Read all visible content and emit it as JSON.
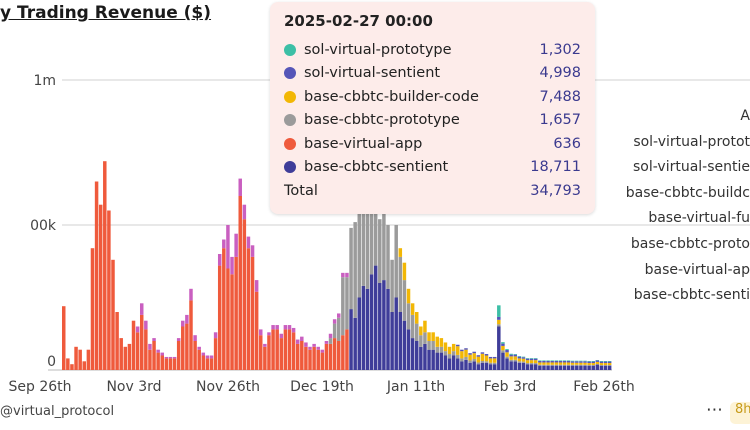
{
  "title": "y Trading Revenue ($)",
  "handle": "@virtual_protocol",
  "more_icon": "⋯",
  "badge": "8h",
  "legend_items": [
    "A",
    "sol-virtual-protot",
    "sol-virtual-sentie",
    "base-cbbtc-buildc",
    "base-virtual-fu",
    "base-cbbtc-proto",
    "base-virtual-ap",
    "base-cbbtc-senti"
  ],
  "tooltip": {
    "time": "2025-02-27 00:00",
    "rows": [
      {
        "name": "sol-virtual-prototype",
        "value": "1,302",
        "color": "#3cbfa6"
      },
      {
        "name": "sol-virtual-sentient",
        "value": "4,998",
        "color": "#5555b8"
      },
      {
        "name": "base-cbbtc-builder-code",
        "value": "7,488",
        "color": "#f2b705"
      },
      {
        "name": "base-cbbtc-prototype",
        "value": "1,657",
        "color": "#9b9b9b"
      },
      {
        "name": "base-virtual-app",
        "value": "636",
        "color": "#ef5a3c"
      },
      {
        "name": "base-cbbtc-sentient",
        "value": "18,711",
        "color": "#3f3d99"
      }
    ],
    "total_label": "Total",
    "total_value": "34,793"
  },
  "chart_data": {
    "type": "bar",
    "stacked": true,
    "title": "y Trading Revenue ($)",
    "y_tick_labels": [
      "0",
      "00k",
      "1m"
    ],
    "ylim": [
      0,
      1000000
    ],
    "x_tick_labels": [
      "Sep 26th",
      "Nov 3rd",
      "Nov 26th",
      "Dec 19th",
      "Jan 11th",
      "Feb 3rd",
      "Feb 26th"
    ],
    "grid": "horizontal",
    "legend_position": "right",
    "series": [
      {
        "name": "base-virtual-app",
        "color": "#ef5a3c",
        "values": [
          220000,
          40000,
          20000,
          80000,
          70000,
          30000,
          70000,
          420000,
          650000,
          570000,
          720000,
          550000,
          380000,
          200000,
          110000,
          80000,
          90000,
          170000,
          130000,
          190000,
          140000,
          70000,
          100000,
          60000,
          50000,
          40000,
          40000,
          40000,
          100000,
          150000,
          160000,
          240000,
          100000,
          70000,
          50000,
          40000,
          40000,
          110000,
          360000,
          420000,
          350000,
          330000,
          390000,
          600000,
          520000,
          420000,
          390000,
          270000,
          120000,
          80000,
          120000,
          140000,
          140000,
          110000,
          140000,
          140000,
          130000,
          90000,
          100000,
          80000,
          70000,
          80000,
          70000,
          60000,
          90000,
          90000,
          110000,
          100000,
          120000,
          140000,
          0,
          0,
          0,
          0,
          0,
          0,
          0,
          0,
          0,
          0,
          0,
          0,
          0,
          0,
          0,
          0,
          0,
          0,
          0,
          0,
          0,
          0,
          0,
          0,
          0,
          0,
          0,
          0,
          0,
          0,
          0,
          0,
          0,
          0,
          0,
          0,
          0,
          0,
          0,
          0,
          0,
          0,
          0,
          0,
          0,
          0,
          0,
          0,
          0,
          0,
          0,
          0,
          0,
          0,
          0,
          0,
          0,
          0,
          0,
          0,
          0,
          0,
          0,
          0
        ]
      },
      {
        "name": "base-cbbtc-sentient",
        "color": "#3f3d99",
        "values": [
          0,
          0,
          0,
          0,
          0,
          0,
          0,
          0,
          0,
          0,
          0,
          0,
          0,
          0,
          0,
          0,
          0,
          0,
          0,
          0,
          0,
          0,
          0,
          0,
          0,
          0,
          0,
          0,
          0,
          0,
          0,
          0,
          0,
          0,
          0,
          0,
          0,
          0,
          0,
          0,
          0,
          0,
          0,
          0,
          0,
          0,
          0,
          0,
          0,
          0,
          0,
          0,
          0,
          0,
          0,
          0,
          0,
          0,
          0,
          0,
          0,
          0,
          0,
          0,
          0,
          0,
          0,
          0,
          0,
          0,
          210000,
          180000,
          250000,
          290000,
          280000,
          330000,
          360000,
          300000,
          310000,
          280000,
          200000,
          250000,
          200000,
          170000,
          140000,
          110000,
          100000,
          80000,
          90000,
          70000,
          70000,
          60000,
          60000,
          50000,
          40000,
          50000,
          40000,
          30000,
          35000,
          25000,
          30000,
          20000,
          25000,
          25000,
          20000,
          20000,
          150000,
          60000,
          40000,
          30000,
          30000,
          25000,
          25000,
          20000,
          20000,
          20000,
          15000,
          15000,
          15000,
          15000,
          15000,
          15000,
          15000,
          15000,
          15000,
          15000,
          15000,
          15000,
          15000,
          15000,
          18711,
          15000,
          15000,
          15000
        ]
      },
      {
        "name": "base-cbbtc-prototype",
        "color": "#9b9b9b",
        "values": [
          0,
          0,
          0,
          0,
          0,
          0,
          0,
          0,
          0,
          0,
          0,
          0,
          0,
          0,
          0,
          0,
          0,
          0,
          0,
          0,
          0,
          0,
          0,
          0,
          0,
          0,
          0,
          0,
          0,
          0,
          0,
          0,
          0,
          0,
          0,
          0,
          0,
          0,
          0,
          0,
          0,
          0,
          0,
          0,
          0,
          0,
          0,
          0,
          0,
          0,
          0,
          0,
          0,
          0,
          0,
          0,
          0,
          0,
          0,
          0,
          0,
          0,
          0,
          0,
          0,
          20000,
          50000,
          80000,
          200000,
          180000,
          280000,
          330000,
          350000,
          320000,
          280000,
          230000,
          200000,
          220000,
          250000,
          220000,
          180000,
          250000,
          190000,
          140000,
          90000,
          80000,
          60000,
          40000,
          40000,
          30000,
          30000,
          20000,
          20000,
          15000,
          15000,
          15000,
          12000,
          10000,
          10000,
          8000,
          8000,
          6000,
          6000,
          5000,
          5000,
          5000,
          8000,
          8000,
          6000,
          5000,
          5000,
          5000,
          4000,
          4000,
          4000,
          4000,
          3000,
          3000,
          3000,
          3000,
          3000,
          3000,
          3000,
          3000,
          3000,
          3000,
          3000,
          3000,
          2000,
          2000,
          1657,
          2000,
          2000,
          2000
        ]
      },
      {
        "name": "base-cbbtc-builder-code",
        "color": "#f2b705",
        "values": [
          0,
          0,
          0,
          0,
          0,
          0,
          0,
          0,
          0,
          0,
          0,
          0,
          0,
          0,
          0,
          0,
          0,
          0,
          0,
          0,
          0,
          0,
          0,
          0,
          0,
          0,
          0,
          0,
          0,
          0,
          0,
          0,
          0,
          0,
          0,
          0,
          0,
          0,
          0,
          0,
          0,
          0,
          0,
          0,
          0,
          0,
          0,
          0,
          0,
          0,
          0,
          0,
          0,
          0,
          0,
          0,
          0,
          0,
          0,
          0,
          0,
          0,
          0,
          0,
          0,
          0,
          0,
          0,
          0,
          0,
          0,
          0,
          0,
          0,
          0,
          0,
          0,
          0,
          0,
          0,
          0,
          0,
          30000,
          60000,
          50000,
          40000,
          40000,
          30000,
          40000,
          30000,
          30000,
          35000,
          30000,
          30000,
          25000,
          25000,
          30000,
          25000,
          25000,
          20000,
          20000,
          20000,
          25000,
          20000,
          15000,
          15000,
          15000,
          15000,
          15000,
          12000,
          12000,
          10000,
          10000,
          10000,
          10000,
          10000,
          8000,
          8000,
          8000,
          8000,
          8000,
          8000,
          8000,
          8000,
          7000,
          7000,
          7000,
          7000,
          7000,
          7000,
          7488,
          7000,
          7000,
          7000
        ]
      },
      {
        "name": "sol-virtual-sentient",
        "color": "#5555b8",
        "values": [
          0,
          0,
          0,
          0,
          0,
          0,
          0,
          0,
          0,
          0,
          0,
          0,
          0,
          0,
          0,
          0,
          0,
          0,
          0,
          0,
          0,
          0,
          0,
          0,
          0,
          0,
          0,
          0,
          0,
          0,
          0,
          0,
          0,
          0,
          0,
          0,
          0,
          0,
          0,
          0,
          0,
          0,
          0,
          0,
          0,
          0,
          0,
          0,
          0,
          0,
          0,
          0,
          0,
          0,
          0,
          0,
          0,
          0,
          0,
          0,
          0,
          0,
          0,
          0,
          0,
          0,
          0,
          0,
          0,
          0,
          0,
          0,
          0,
          0,
          0,
          0,
          0,
          0,
          0,
          0,
          0,
          0,
          0,
          0,
          0,
          0,
          0,
          0,
          0,
          0,
          0,
          0,
          0,
          0,
          0,
          0,
          5000,
          5000,
          5000,
          5000,
          5000,
          5000,
          5000,
          5000,
          5000,
          5000,
          10000,
          8000,
          8000,
          6000,
          6000,
          6000,
          5000,
          5000,
          5000,
          5000,
          5000,
          5000,
          5000,
          5000,
          5000,
          5000,
          5000,
          5000,
          5000,
          5000,
          5000,
          5000,
          5000,
          5000,
          4998,
          5000,
          5000,
          5000
        ]
      },
      {
        "name": "sol-virtual-prototype",
        "color": "#3cbfa6",
        "values": [
          0,
          0,
          0,
          0,
          0,
          0,
          0,
          0,
          0,
          0,
          0,
          0,
          0,
          0,
          0,
          0,
          0,
          0,
          0,
          0,
          0,
          0,
          0,
          0,
          0,
          0,
          0,
          0,
          0,
          0,
          0,
          0,
          0,
          0,
          0,
          0,
          0,
          0,
          0,
          0,
          0,
          0,
          0,
          0,
          0,
          0,
          0,
          0,
          0,
          0,
          0,
          0,
          0,
          0,
          0,
          0,
          0,
          0,
          0,
          0,
          0,
          0,
          0,
          0,
          0,
          0,
          0,
          0,
          0,
          0,
          0,
          0,
          0,
          0,
          0,
          0,
          0,
          0,
          0,
          0,
          0,
          0,
          0,
          0,
          0,
          0,
          0,
          0,
          0,
          0,
          0,
          0,
          0,
          0,
          0,
          0,
          0,
          0,
          0,
          0,
          0,
          0,
          0,
          0,
          0,
          0,
          40000,
          5000,
          3000,
          3000,
          2000,
          2000,
          2000,
          2000,
          2000,
          2000,
          2000,
          2000,
          2000,
          2000,
          2000,
          2000,
          2000,
          2000,
          2000,
          2000,
          2000,
          2000,
          2000,
          2000,
          1302,
          2000,
          2000,
          2000
        ]
      },
      {
        "name": "base-virtual-fu",
        "color": "#c95fc0",
        "values": [
          0,
          0,
          0,
          0,
          0,
          0,
          0,
          0,
          0,
          0,
          0,
          0,
          0,
          0,
          0,
          0,
          0,
          0,
          20000,
          40000,
          30000,
          20000,
          10000,
          10000,
          10000,
          5000,
          5000,
          5000,
          10000,
          20000,
          30000,
          40000,
          20000,
          10000,
          10000,
          10000,
          10000,
          20000,
          40000,
          30000,
          150000,
          60000,
          80000,
          60000,
          50000,
          40000,
          40000,
          40000,
          20000,
          10000,
          10000,
          15000,
          15000,
          15000,
          15000,
          15000,
          15000,
          15000,
          15000,
          15000,
          10000,
          10000,
          10000,
          10000,
          10000,
          15000,
          15000,
          15000,
          15000,
          15000,
          0,
          0,
          0,
          0,
          0,
          0,
          0,
          0,
          0,
          0,
          0,
          0,
          0,
          0,
          0,
          0,
          0,
          0,
          0,
          0,
          0,
          0,
          0,
          0,
          0,
          0,
          0,
          0,
          0,
          0,
          0,
          0,
          0,
          0,
          0,
          0,
          0,
          0,
          0,
          0,
          0,
          0,
          0,
          0,
          0,
          0,
          0,
          0,
          0,
          0,
          0,
          0,
          0,
          0,
          0,
          0,
          0,
          0,
          0,
          0,
          0,
          0,
          0,
          0
        ]
      }
    ]
  }
}
